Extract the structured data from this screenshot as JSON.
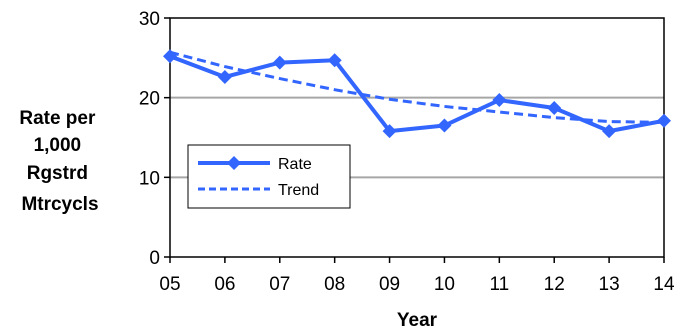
{
  "chart_data": {
    "type": "line",
    "categories": [
      "05",
      "06",
      "07",
      "08",
      "09",
      "10",
      "11",
      "12",
      "13",
      "14"
    ],
    "series": [
      {
        "name": "Rate",
        "values": [
          25.2,
          22.6,
          24.4,
          24.7,
          15.8,
          16.5,
          19.7,
          18.7,
          15.8,
          17.1
        ]
      },
      {
        "name": "Trend",
        "values": [
          25.7,
          23.9,
          22.4,
          21.0,
          19.8,
          18.9,
          18.2,
          17.5,
          17.0,
          16.9
        ]
      }
    ],
    "xlabel": "Year",
    "ylabel_lines": [
      "Rate per",
      "1,000",
      "Rgstrd",
      "Mtrcycls"
    ],
    "ylim": [
      0,
      30
    ],
    "yticks": [
      0,
      10,
      20,
      30
    ],
    "gridlines": [
      10,
      20
    ],
    "legend_position": "inside-left",
    "colors": {
      "rate": "#3366FF",
      "trend": "#3366FF",
      "grid": "#A6A6A6"
    }
  }
}
